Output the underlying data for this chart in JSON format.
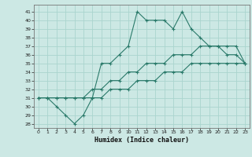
{
  "xlabel": "Humidex (Indice chaleur)",
  "background_color": "#cce8e4",
  "grid_color": "#aad4ce",
  "line_color": "#2a7a6a",
  "xlim": [
    -0.5,
    23.5
  ],
  "ylim": [
    27.5,
    41.8
  ],
  "xticks": [
    0,
    1,
    2,
    3,
    4,
    5,
    6,
    7,
    8,
    9,
    10,
    11,
    12,
    13,
    14,
    15,
    16,
    17,
    18,
    19,
    20,
    21,
    22,
    23
  ],
  "yticks": [
    28,
    29,
    30,
    31,
    32,
    33,
    34,
    35,
    36,
    37,
    38,
    39,
    40,
    41
  ],
  "line1_x": [
    0,
    1,
    2,
    3,
    4,
    5,
    6,
    7,
    8,
    9,
    10,
    11,
    12,
    13,
    14,
    15,
    16,
    17,
    18,
    19,
    20,
    21,
    22,
    23
  ],
  "line1_y": [
    31,
    31,
    30,
    29,
    28,
    29,
    31,
    35,
    35,
    36,
    37,
    41,
    40,
    40,
    40,
    39,
    41,
    39,
    38,
    37,
    37,
    36,
    36,
    35
  ],
  "line2_x": [
    0,
    1,
    2,
    3,
    4,
    5,
    6,
    7,
    8,
    9,
    10,
    11,
    12,
    13,
    14,
    15,
    16,
    17,
    18,
    19,
    20,
    21,
    22,
    23
  ],
  "line2_y": [
    31,
    31,
    31,
    31,
    31,
    31,
    32,
    32,
    33,
    33,
    34,
    34,
    35,
    35,
    35,
    36,
    36,
    36,
    37,
    37,
    37,
    37,
    37,
    35
  ],
  "line3_x": [
    0,
    1,
    2,
    3,
    4,
    5,
    6,
    7,
    8,
    9,
    10,
    11,
    12,
    13,
    14,
    15,
    16,
    17,
    18,
    19,
    20,
    21,
    22,
    23
  ],
  "line3_y": [
    31,
    31,
    31,
    31,
    31,
    31,
    31,
    31,
    32,
    32,
    32,
    33,
    33,
    33,
    34,
    34,
    34,
    35,
    35,
    35,
    35,
    35,
    35,
    35
  ]
}
